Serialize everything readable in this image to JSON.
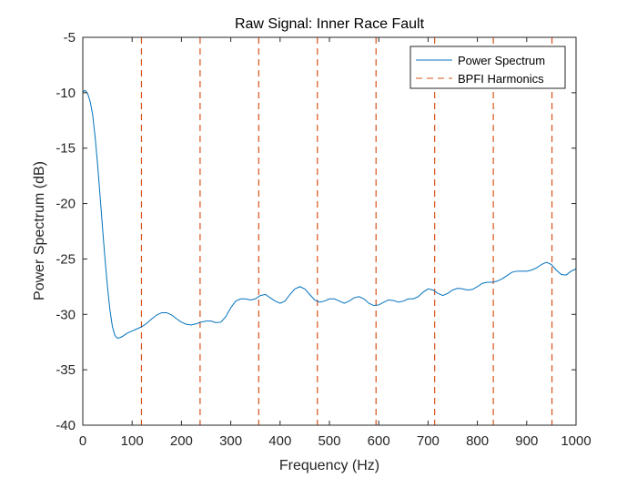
{
  "chart_data": {
    "type": "line",
    "title": "Raw Signal: Inner Race Fault",
    "xlabel": "Frequency (Hz)",
    "ylabel": "Power Spectrum (dB)",
    "xlim": [
      0,
      1000
    ],
    "ylim": [
      -40,
      -5
    ],
    "xticks": [
      0,
      100,
      200,
      300,
      400,
      500,
      600,
      700,
      800,
      900,
      1000
    ],
    "yticks": [
      -40,
      -35,
      -30,
      -25,
      -20,
      -15,
      -10,
      -5
    ],
    "grid": false,
    "legend_position": "top-right",
    "series": [
      {
        "name": "Power Spectrum",
        "style": "solid",
        "color": "#0072BD",
        "points": [
          [
            0,
            -9.9
          ],
          [
            5,
            -9.8
          ],
          [
            10,
            -10.1
          ],
          [
            15,
            -10.8
          ],
          [
            20,
            -12.0
          ],
          [
            25,
            -14.0
          ],
          [
            30,
            -16.5
          ],
          [
            35,
            -19.3
          ],
          [
            40,
            -22.2
          ],
          [
            45,
            -25.0
          ],
          [
            50,
            -27.5
          ],
          [
            55,
            -29.6
          ],
          [
            60,
            -31.1
          ],
          [
            65,
            -31.9
          ],
          [
            70,
            -32.15
          ],
          [
            75,
            -32.1
          ],
          [
            80,
            -32.0
          ],
          [
            90,
            -31.7
          ],
          [
            100,
            -31.5
          ],
          [
            110,
            -31.3
          ],
          [
            120,
            -31.1
          ],
          [
            130,
            -30.8
          ],
          [
            140,
            -30.4
          ],
          [
            150,
            -30.05
          ],
          [
            160,
            -29.85
          ],
          [
            170,
            -29.85
          ],
          [
            180,
            -30.05
          ],
          [
            190,
            -30.4
          ],
          [
            200,
            -30.7
          ],
          [
            210,
            -30.9
          ],
          [
            220,
            -30.95
          ],
          [
            230,
            -30.85
          ],
          [
            240,
            -30.7
          ],
          [
            250,
            -30.6
          ],
          [
            260,
            -30.6
          ],
          [
            270,
            -30.75
          ],
          [
            280,
            -30.7
          ],
          [
            290,
            -30.2
          ],
          [
            300,
            -29.4
          ],
          [
            310,
            -28.8
          ],
          [
            320,
            -28.6
          ],
          [
            330,
            -28.6
          ],
          [
            340,
            -28.7
          ],
          [
            350,
            -28.6
          ],
          [
            360,
            -28.3
          ],
          [
            370,
            -28.2
          ],
          [
            380,
            -28.5
          ],
          [
            390,
            -28.8
          ],
          [
            400,
            -29.0
          ],
          [
            410,
            -28.8
          ],
          [
            420,
            -28.2
          ],
          [
            430,
            -27.7
          ],
          [
            440,
            -27.5
          ],
          [
            450,
            -27.7
          ],
          [
            460,
            -28.2
          ],
          [
            470,
            -28.7
          ],
          [
            480,
            -28.9
          ],
          [
            490,
            -28.8
          ],
          [
            500,
            -28.6
          ],
          [
            510,
            -28.6
          ],
          [
            520,
            -28.8
          ],
          [
            530,
            -29.0
          ],
          [
            540,
            -28.8
          ],
          [
            550,
            -28.5
          ],
          [
            560,
            -28.4
          ],
          [
            570,
            -28.6
          ],
          [
            580,
            -29.0
          ],
          [
            590,
            -29.2
          ],
          [
            600,
            -29.15
          ],
          [
            610,
            -28.9
          ],
          [
            620,
            -28.7
          ],
          [
            630,
            -28.75
          ],
          [
            640,
            -28.9
          ],
          [
            650,
            -28.8
          ],
          [
            660,
            -28.6
          ],
          [
            670,
            -28.6
          ],
          [
            680,
            -28.4
          ],
          [
            690,
            -28.0
          ],
          [
            700,
            -27.7
          ],
          [
            710,
            -27.8
          ],
          [
            720,
            -28.1
          ],
          [
            730,
            -28.3
          ],
          [
            740,
            -28.1
          ],
          [
            750,
            -27.8
          ],
          [
            760,
            -27.65
          ],
          [
            770,
            -27.7
          ],
          [
            780,
            -27.8
          ],
          [
            790,
            -27.75
          ],
          [
            800,
            -27.5
          ],
          [
            810,
            -27.2
          ],
          [
            820,
            -27.1
          ],
          [
            830,
            -27.1
          ],
          [
            840,
            -27.0
          ],
          [
            850,
            -26.8
          ],
          [
            860,
            -26.5
          ],
          [
            870,
            -26.2
          ],
          [
            880,
            -26.1
          ],
          [
            890,
            -26.1
          ],
          [
            900,
            -26.1
          ],
          [
            910,
            -26.0
          ],
          [
            920,
            -25.8
          ],
          [
            930,
            -25.5
          ],
          [
            940,
            -25.3
          ],
          [
            950,
            -25.5
          ],
          [
            960,
            -26.0
          ],
          [
            970,
            -26.4
          ],
          [
            980,
            -26.45
          ],
          [
            990,
            -26.1
          ],
          [
            1000,
            -25.9
          ]
        ]
      },
      {
        "name": "BPFI Harmonics",
        "style": "dashed",
        "color": "#D95319",
        "x": [
          118.9,
          237.8,
          356.7,
          475.6,
          594.5,
          713.4,
          832.3,
          951.2
        ]
      }
    ]
  }
}
